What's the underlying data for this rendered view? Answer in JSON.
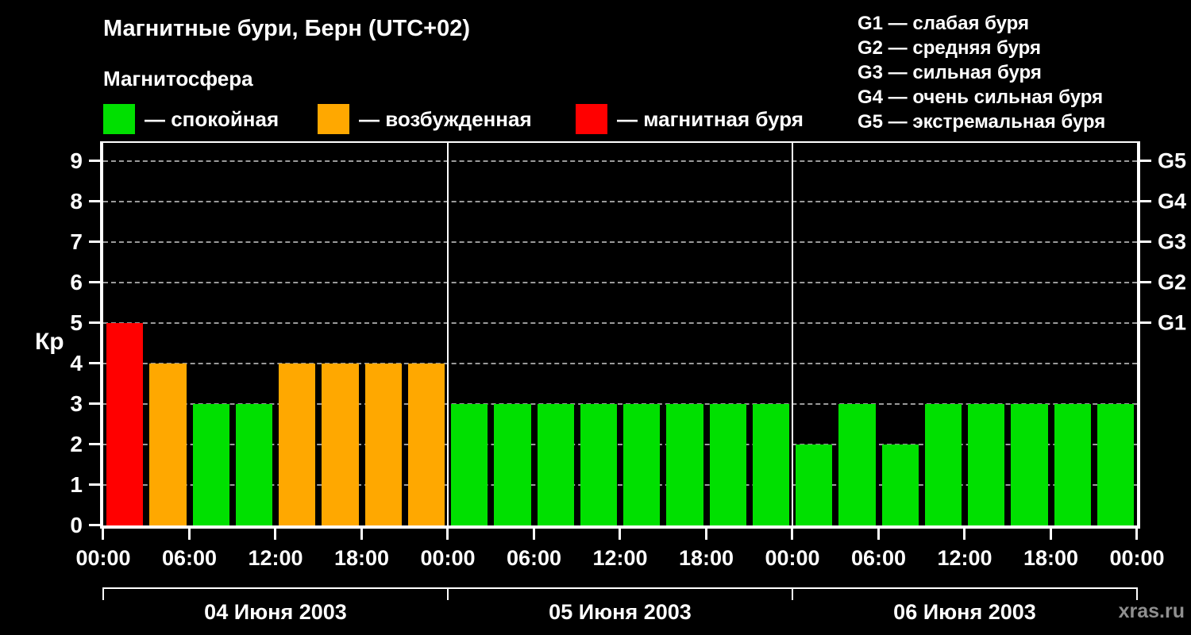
{
  "title": "Магнитные бури, Берн (UTC+02)",
  "subtitle": "Магнитосфера",
  "legend": {
    "items": [
      {
        "state": "quiet",
        "label": "— спокойная"
      },
      {
        "state": "excited",
        "label": "— возбужденная"
      },
      {
        "state": "storm",
        "label": "— магнитная буря"
      }
    ]
  },
  "storm_scale": {
    "lines": [
      "G1 — слабая буря",
      "G2 — средняя буря",
      "G3 — сильная буря",
      "G4 — очень сильная буря",
      "G5 — экстремальная буря"
    ]
  },
  "watermark": "xras.ru",
  "chart_data": {
    "type": "bar",
    "title": "Магнитные бури, Берн (UTC+02)",
    "ylabel": "Кр",
    "ylim": [
      0,
      9
    ],
    "y_ticks": [
      0,
      1,
      2,
      3,
      4,
      5,
      6,
      7,
      8,
      9
    ],
    "x_ticks": [
      "00:00",
      "06:00",
      "12:00",
      "18:00",
      "00:00",
      "06:00",
      "12:00",
      "18:00",
      "00:00",
      "06:00",
      "12:00",
      "18:00",
      "00:00"
    ],
    "interval_hours": 3,
    "grid": "dashed-horizontal",
    "legend_position": "top-left",
    "state_colors": {
      "quiet": "#00e000",
      "excited": "#ffa800",
      "storm": "#ff0000"
    },
    "g_scale": [
      {
        "kp": 5,
        "label": "G1"
      },
      {
        "kp": 6,
        "label": "G2"
      },
      {
        "kp": 7,
        "label": "G3"
      },
      {
        "kp": 8,
        "label": "G4"
      },
      {
        "kp": 9,
        "label": "G5"
      }
    ],
    "days": [
      {
        "date": "04 Июня 2003",
        "kp": [
          5,
          4,
          3,
          3,
          4,
          4,
          4,
          4
        ],
        "state": [
          "storm",
          "excited",
          "quiet",
          "quiet",
          "excited",
          "excited",
          "excited",
          "excited"
        ]
      },
      {
        "date": "05 Июня 2003",
        "kp": [
          3,
          3,
          3,
          3,
          3,
          3,
          3,
          3
        ],
        "state": [
          "quiet",
          "quiet",
          "quiet",
          "quiet",
          "quiet",
          "quiet",
          "quiet",
          "quiet"
        ]
      },
      {
        "date": "06 Июня 2003",
        "kp": [
          2,
          3,
          2,
          3,
          3,
          3,
          3,
          3
        ],
        "state": [
          "quiet",
          "quiet",
          "quiet",
          "quiet",
          "quiet",
          "quiet",
          "quiet",
          "quiet"
        ]
      }
    ]
  }
}
